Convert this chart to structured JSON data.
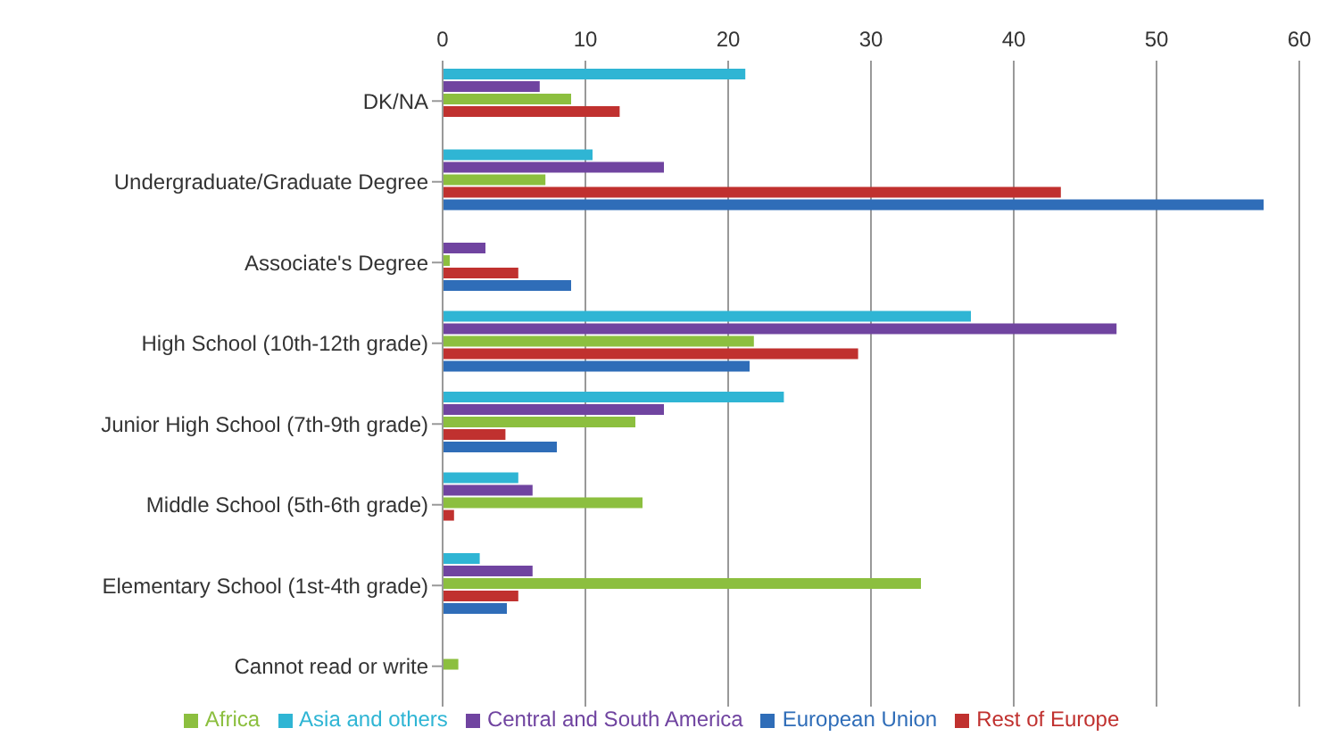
{
  "chart_data": {
    "type": "bar",
    "orientation": "horizontal",
    "categories": [
      "DK/NA",
      "Undergraduate/Graduate Degree",
      "Associate's Degree",
      "High School (10th-12th grade)",
      "Junior High School (7th-9th grade)",
      "Middle School (5th-6th grade)",
      "Elementary School (1st-4th grade)",
      "Cannot read or write"
    ],
    "series": [
      {
        "name": "Asia and others",
        "color": "#2fb5d4",
        "values": [
          21.2,
          10.5,
          0,
          37,
          23.9,
          5.3,
          2.6,
          0
        ]
      },
      {
        "name": "Central and South America",
        "color": "#7044a0",
        "values": [
          6.8,
          15.5,
          3,
          47.2,
          15.5,
          6.3,
          6.3,
          0
        ]
      },
      {
        "name": "Africa",
        "color": "#8cbf3f",
        "values": [
          9,
          7.2,
          0.5,
          21.8,
          13.5,
          14,
          33.5,
          1.1
        ]
      },
      {
        "name": "Rest of Europe",
        "color": "#c0312f",
        "values": [
          12.4,
          43.3,
          5.3,
          29.1,
          4.4,
          0.8,
          5.3,
          0
        ]
      },
      {
        "name": "European Union",
        "color": "#2f6db8",
        "values": [
          0,
          57.5,
          9,
          21.5,
          8,
          0,
          4.5,
          0
        ]
      }
    ],
    "xlim": [
      0,
      60
    ],
    "xticks": [
      0,
      10,
      20,
      30,
      40,
      50,
      60
    ],
    "grid": "x",
    "legend": "bottom"
  }
}
